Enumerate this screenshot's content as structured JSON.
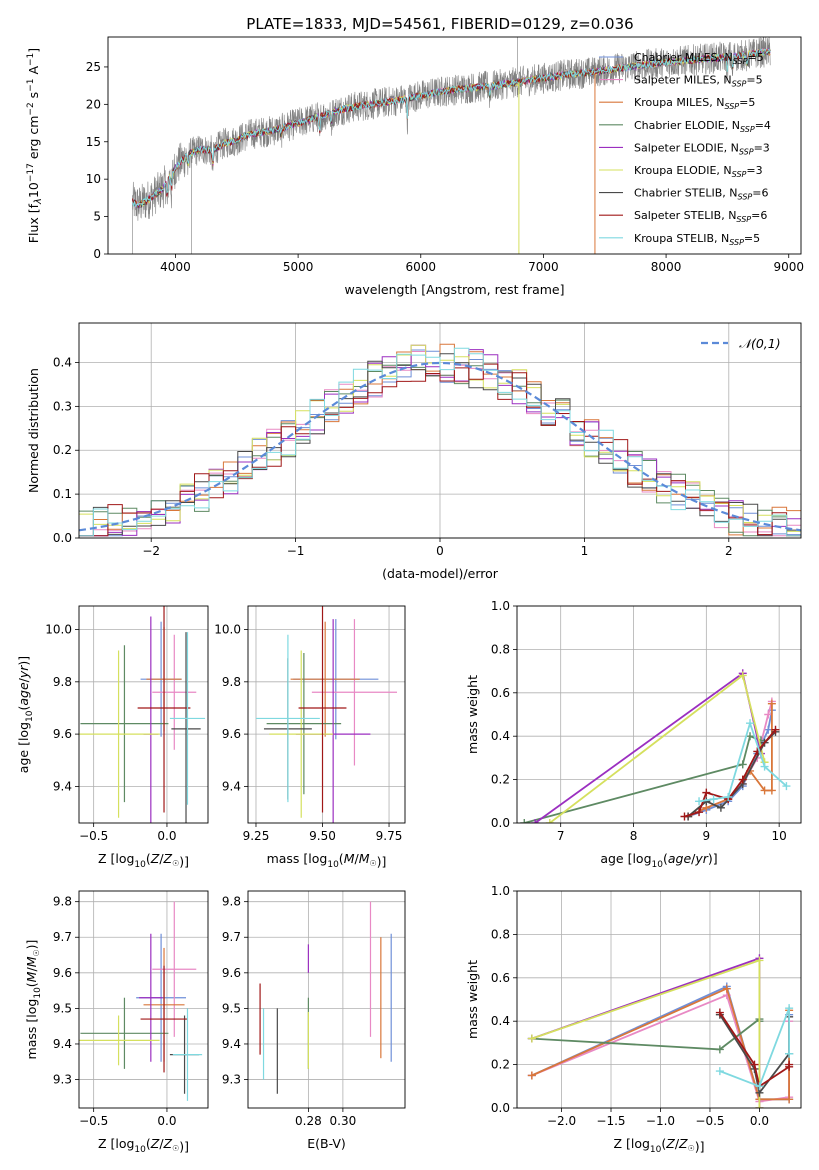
{
  "title": "PLATE=1833, MJD=54561, FIBERID=0129, z=0.036",
  "models": [
    {
      "label": "Chabrier MILES, N_SSP=5",
      "base": "Chabrier MILES, N",
      "sub": "SSP",
      "suffix": "=5",
      "color": "#6f8fd8"
    },
    {
      "label": "Salpeter MILES, N_SSP=5",
      "base": "Salpeter MILES, N",
      "sub": "SSP",
      "suffix": "=5",
      "color": "#e889c4"
    },
    {
      "label": "Kroupa MILES, N_SSP=5",
      "base": "Kroupa MILES, N",
      "sub": "SSP",
      "suffix": "=5",
      "color": "#d9773a"
    },
    {
      "label": "Chabrier ELODIE, N_SSP=4",
      "base": "Chabrier ELODIE, N",
      "sub": "SSP",
      "suffix": "=4",
      "color": "#5e8a63"
    },
    {
      "label": "Salpeter ELODIE, N_SSP=3",
      "base": "Salpeter ELODIE, N",
      "sub": "SSP",
      "suffix": "=3",
      "color": "#9b2fc0"
    },
    {
      "label": "Kroupa ELODIE, N_SSP=3",
      "base": "Kroupa ELODIE, N",
      "sub": "SSP",
      "suffix": "=3",
      "color": "#d5e05e"
    },
    {
      "label": "Chabrier STELIB, N_SSP=6",
      "base": "Chabrier STELIB, N",
      "sub": "SSP",
      "suffix": "=6",
      "color": "#4a4a4a"
    },
    {
      "label": "Salpeter STELIB, N_SSP=6",
      "base": "Salpeter STELIB, N",
      "sub": "SSP",
      "suffix": "=6",
      "color": "#a01818"
    },
    {
      "label": "Kroupa STELIB, N_SSP=5",
      "base": "Kroupa STELIB, N",
      "sub": "SSP",
      "suffix": "=5",
      "color": "#7fd9e0"
    }
  ],
  "chart_data": [
    {
      "id": "spectrum",
      "type": "line",
      "title": "PLATE=1833, MJD=54561, FIBERID=0129, z=0.036",
      "xlabel": "wavelength [Angstrom, rest frame]",
      "ylabel": "Flux [f_λ 10^-17 erg cm^-2 s^-1 A^-1]",
      "xlim": [
        3450,
        9100
      ],
      "ylim": [
        0,
        29
      ],
      "xticks": [
        4000,
        5000,
        6000,
        7000,
        8000,
        9000
      ],
      "yticks": [
        0,
        5,
        10,
        15,
        20,
        25
      ],
      "data_color": "#808080",
      "continuum": {
        "x": [
          3650,
          3700,
          3800,
          3900,
          4000,
          4100,
          4200,
          4300,
          4400,
          4500,
          4600,
          4800,
          5000,
          5200,
          5400,
          5600,
          5800,
          6000,
          6200,
          6400,
          6600,
          6800,
          7000,
          7200,
          7400,
          7600,
          7800,
          8000,
          8200,
          8400,
          8600,
          8800
        ],
        "y": [
          7.0,
          6.5,
          7.5,
          8.8,
          11.5,
          13.3,
          14.0,
          13.8,
          14.8,
          15.2,
          16.0,
          16.5,
          17.5,
          18.5,
          19.5,
          20.0,
          20.5,
          21.2,
          21.8,
          22.2,
          22.5,
          23.0,
          23.5,
          24.0,
          24.3,
          24.8,
          25.2,
          25.6,
          25.9,
          26.2,
          26.5,
          27.0
        ]
      },
      "absorption_lines": [
        [
          3934,
          3.0
        ],
        [
          3968,
          2.5
        ],
        [
          4102,
          2.0
        ],
        [
          4304,
          2.5
        ],
        [
          4861,
          1.5
        ],
        [
          5175,
          3.0
        ],
        [
          5270,
          2.0
        ],
        [
          5890,
          3.0
        ],
        [
          6563,
          1.5
        ],
        [
          8498,
          2.0
        ],
        [
          8542,
          2.5
        ],
        [
          8662,
          2.0
        ]
      ],
      "grid": false,
      "legend": "upper right"
    },
    {
      "id": "residuals",
      "type": "histogram",
      "xlabel": "(data-model)/error",
      "ylabel": "Normed distribution",
      "xlim": [
        -2.5,
        2.5
      ],
      "ylim": [
        0,
        0.49
      ],
      "xticks": [
        -2,
        -1,
        0,
        1,
        2
      ],
      "yticks": [
        0.0,
        0.1,
        0.2,
        0.3,
        0.4
      ],
      "bin_width": 0.1,
      "normal_curve": {
        "label": "𝒩(0,1)",
        "color": "#5b8ad8",
        "mean": 0,
        "std": 1
      },
      "grid": true,
      "legend": "upper right"
    },
    {
      "id": "age_vs_Z",
      "type": "errorbar",
      "xlabel": "Z [log10(Z/Z☉)]",
      "ylabel": "age [log10(age/yr)]",
      "xlim": [
        -0.6,
        0.28
      ],
      "ylim": [
        9.26,
        10.09
      ],
      "xticks": [
        -0.5,
        0.0
      ],
      "xticklabels": [
        "−0.5",
        "0.0"
      ],
      "yticks": [
        9.4,
        9.6,
        9.8,
        10.0
      ],
      "points": [
        {
          "series": 0,
          "x": -0.04,
          "y": 9.81,
          "xerr": 0.14,
          "yerr": 0.22
        },
        {
          "series": 1,
          "x": 0.05,
          "y": 9.76,
          "xerr": 0.15,
          "yerr": 0.22
        },
        {
          "series": 2,
          "x": -0.02,
          "y": 9.81,
          "xerr": 0.12,
          "yerr": 0.2
        },
        {
          "series": 3,
          "x": -0.29,
          "y": 9.64,
          "xerr": 0.3,
          "yerr": 0.3
        },
        {
          "series": 4,
          "x": -0.11,
          "y": 9.6,
          "xerr": 0.05,
          "yerr": 0.45
        },
        {
          "series": 5,
          "x": -0.33,
          "y": 9.6,
          "xerr": 0.28,
          "yerr": 0.32
        },
        {
          "series": 6,
          "x": 0.13,
          "y": 9.62,
          "xerr": 0.1,
          "yerr": 0.37
        },
        {
          "series": 7,
          "x": -0.02,
          "y": 9.7,
          "xerr": 0.18,
          "yerr": 0.4
        },
        {
          "series": 8,
          "x": 0.14,
          "y": 9.66,
          "xerr": 0.12,
          "yerr": 0.33
        }
      ],
      "grid": true
    },
    {
      "id": "age_vs_mass",
      "type": "errorbar",
      "xlabel": "mass [log10(M/M☉)]",
      "ylabel": "",
      "xlim": [
        9.22,
        9.81
      ],
      "ylim": [
        9.26,
        10.09
      ],
      "xticks": [
        9.25,
        9.5,
        9.75
      ],
      "yticks": [
        9.4,
        9.6,
        9.8,
        10.0
      ],
      "points": [
        {
          "series": 0,
          "x": 9.55,
          "y": 9.81,
          "xerr": 0.16,
          "yerr": 0.23
        },
        {
          "series": 1,
          "x": 9.62,
          "y": 9.76,
          "xerr": 0.16,
          "yerr": 0.28
        },
        {
          "series": 2,
          "x": 9.51,
          "y": 9.81,
          "xerr": 0.13,
          "yerr": 0.22
        },
        {
          "series": 3,
          "x": 9.43,
          "y": 9.64,
          "xerr": 0.14,
          "yerr": 0.27
        },
        {
          "series": 4,
          "x": 9.54,
          "y": 9.6,
          "xerr": 0.14,
          "yerr": 0.44
        },
        {
          "series": 5,
          "x": 9.42,
          "y": 9.6,
          "xerr": 0.12,
          "yerr": 0.32
        },
        {
          "series": 6,
          "x": 9.37,
          "y": 9.62,
          "xerr": 0.09,
          "yerr": 0.27
        },
        {
          "series": 7,
          "x": 9.5,
          "y": 9.7,
          "xerr": 0.09,
          "yerr": 0.4
        },
        {
          "series": 8,
          "x": 9.37,
          "y": 9.66,
          "xerr": 0.12,
          "yerr": 0.32
        }
      ],
      "grid": true
    },
    {
      "id": "massweight_vs_age",
      "type": "line",
      "xlabel": "age [log10(age/yr)]",
      "ylabel": "mass weight",
      "xlim": [
        6.4,
        10.3
      ],
      "ylim": [
        0,
        1
      ],
      "xticks": [
        7,
        8,
        9,
        10
      ],
      "yticks": [
        0.0,
        0.2,
        0.4,
        0.6,
        0.8,
        1.0
      ],
      "series": [
        {
          "series": 0,
          "x": [
            8.75,
            9.0,
            9.3,
            9.5,
            9.7,
            9.85,
            9.9
          ],
          "y": [
            0.03,
            0.06,
            0.1,
            0.17,
            0.32,
            0.43,
            0.52
          ]
        },
        {
          "series": 1,
          "x": [
            8.75,
            9.0,
            9.3,
            9.5,
            9.7,
            9.85,
            9.9
          ],
          "y": [
            0.03,
            0.07,
            0.11,
            0.18,
            0.3,
            0.5,
            0.56
          ]
        },
        {
          "series": 2,
          "x": [
            8.75,
            9.0,
            9.3,
            9.5,
            9.6,
            9.8,
            9.9,
            9.9
          ],
          "y": [
            0.03,
            0.07,
            0.11,
            0.2,
            0.24,
            0.15,
            0.15,
            0.55
          ]
        },
        {
          "series": 3,
          "x": [
            6.5,
            9.5,
            9.6,
            9.75
          ],
          "y": [
            0.0,
            0.27,
            0.4,
            0.38
          ]
        },
        {
          "series": 4,
          "x": [
            6.65,
            9.5,
            9.75
          ],
          "y": [
            0.0,
            0.69,
            0.32
          ]
        },
        {
          "series": 5,
          "x": [
            6.85,
            9.5,
            9.8
          ],
          "y": [
            0.0,
            0.68,
            0.28
          ]
        },
        {
          "series": 6,
          "x": [
            8.75,
            9.0,
            9.2,
            9.5,
            9.8,
            9.95
          ],
          "y": [
            0.03,
            0.1,
            0.07,
            0.18,
            0.37,
            0.42
          ]
        },
        {
          "series": 7,
          "x": [
            8.7,
            8.9,
            9.0,
            9.3,
            9.5,
            9.7,
            9.95
          ],
          "y": [
            0.03,
            0.05,
            0.14,
            0.11,
            0.2,
            0.33,
            0.43
          ]
        },
        {
          "series": 8,
          "x": [
            8.9,
            9.1,
            9.3,
            9.6,
            9.8,
            10.1
          ],
          "y": [
            0.1,
            0.11,
            0.12,
            0.46,
            0.26,
            0.17
          ]
        }
      ],
      "grid": true
    },
    {
      "id": "mass_vs_Z",
      "type": "errorbar",
      "xlabel": "Z [log10(Z/Z☉)]",
      "ylabel": "mass [log10(M/M☉)]",
      "xlim": [
        -0.6,
        0.28
      ],
      "ylim": [
        9.22,
        9.83
      ],
      "xticks": [
        -0.5,
        0.0
      ],
      "xticklabels": [
        "−0.5",
        "0.0"
      ],
      "yticks": [
        9.3,
        9.4,
        9.5,
        9.6,
        9.7,
        9.8
      ],
      "points": [
        {
          "series": 0,
          "x": -0.04,
          "y": 9.53,
          "xerr": 0.17,
          "yerr": 0.18
        },
        {
          "series": 1,
          "x": 0.05,
          "y": 9.61,
          "xerr": 0.15,
          "yerr": 0.19
        },
        {
          "series": 2,
          "x": -0.02,
          "y": 9.51,
          "xerr": 0.14,
          "yerr": 0.16
        },
        {
          "series": 3,
          "x": -0.29,
          "y": 9.43,
          "xerr": 0.3,
          "yerr": 0.1
        },
        {
          "series": 4,
          "x": -0.11,
          "y": 9.53,
          "xerr": 0.08,
          "yerr": 0.18
        },
        {
          "series": 5,
          "x": -0.33,
          "y": 9.41,
          "xerr": 0.28,
          "yerr": 0.07
        },
        {
          "series": 6,
          "x": 0.12,
          "y": 9.37,
          "xerr": 0.1,
          "yerr": 0.11
        },
        {
          "series": 7,
          "x": -0.02,
          "y": 9.47,
          "xerr": 0.16,
          "yerr": 0.15
        },
        {
          "series": 8,
          "x": 0.14,
          "y": 9.37,
          "xerr": 0.1,
          "yerr": 0.13
        }
      ],
      "grid": true
    },
    {
      "id": "mass_vs_ebv",
      "type": "errorbar",
      "xlabel": "E(B-V)",
      "ylabel": "",
      "xlim": [
        0.245,
        0.336
      ],
      "ylim": [
        9.22,
        9.83
      ],
      "xticks": [
        0.28,
        0.3
      ],
      "xticklabels": [
        "0.28",
        "0.30"
      ],
      "yticks": [
        9.3,
        9.4,
        9.5,
        9.6,
        9.7,
        9.8
      ],
      "points": [
        {
          "series": 0,
          "x": 0.328,
          "y": 9.53,
          "xerr": 0,
          "yerr": 0.18
        },
        {
          "series": 1,
          "x": 0.316,
          "y": 9.61,
          "xerr": 0,
          "yerr": 0.19
        },
        {
          "series": 2,
          "x": 0.322,
          "y": 9.53,
          "xerr": 0,
          "yerr": 0.17
        },
        {
          "series": 3,
          "x": 0.28,
          "y": 9.43,
          "xerr": 0,
          "yerr": 0.1
        },
        {
          "series": 4,
          "x": 0.28,
          "y": 9.64,
          "xerr": 0,
          "yerr": 0.04
        },
        {
          "series": 5,
          "x": 0.28,
          "y": 9.41,
          "xerr": 0,
          "yerr": 0.08
        },
        {
          "series": 6,
          "x": 0.262,
          "y": 9.38,
          "xerr": 0,
          "yerr": 0.12
        },
        {
          "series": 7,
          "x": 0.252,
          "y": 9.47,
          "xerr": 0,
          "yerr": 0.1
        },
        {
          "series": 8,
          "x": 0.254,
          "y": 9.4,
          "xerr": 0,
          "yerr": 0.1
        }
      ],
      "grid": true
    },
    {
      "id": "massweight_vs_Z",
      "type": "line",
      "xlabel": "Z [log10(Z/Z☉)]",
      "ylabel": "mass weight",
      "xlim": [
        -2.45,
        0.42
      ],
      "ylim": [
        0,
        1
      ],
      "xticks": [
        -2.0,
        -1.5,
        -1.0,
        -0.5,
        0.0
      ],
      "xticklabels": [
        "−2.0",
        "−1.5",
        "−1.0",
        "−0.5",
        "0.0"
      ],
      "yticks": [
        0.0,
        0.2,
        0.4,
        0.6,
        0.8,
        1.0
      ],
      "series": [
        {
          "series": 0,
          "x": [
            -2.3,
            -0.33,
            0.0,
            0.3,
            0.3
          ],
          "y": [
            0.15,
            0.56,
            0.04,
            0.04,
            0.43
          ]
        },
        {
          "series": 1,
          "x": [
            -2.3,
            -0.33,
            0.0,
            0.3,
            0.3
          ],
          "y": [
            0.15,
            0.52,
            0.03,
            0.05,
            0.4
          ]
        },
        {
          "series": 2,
          "x": [
            -2.3,
            -0.33,
            0.0,
            0.3,
            0.3
          ],
          "y": [
            0.15,
            0.55,
            0.04,
            0.04,
            0.45
          ]
        },
        {
          "series": 3,
          "x": [
            -2.3,
            -0.4,
            0.0,
            0.0
          ],
          "y": [
            0.32,
            0.27,
            0.41,
            0.4
          ]
        },
        {
          "series": 4,
          "x": [
            -2.3,
            0.0,
            0.0
          ],
          "y": [
            0.32,
            0.69,
            0.0
          ]
        },
        {
          "series": 5,
          "x": [
            -2.3,
            0.0,
            0.0
          ],
          "y": [
            0.32,
            0.68,
            0.0
          ]
        },
        {
          "series": 6,
          "x": [
            -0.4,
            -0.05,
            0.0,
            0.3,
            0.3
          ],
          "y": [
            0.43,
            0.18,
            0.07,
            0.25,
            0.42
          ]
        },
        {
          "series": 7,
          "x": [
            -0.4,
            -0.05,
            0.0,
            0.3,
            0.3
          ],
          "y": [
            0.44,
            0.2,
            0.1,
            0.19,
            0.2
          ]
        },
        {
          "series": 8,
          "x": [
            -0.4,
            0.0,
            0.3,
            0.3
          ],
          "y": [
            0.17,
            0.1,
            0.46,
            0.25
          ]
        }
      ],
      "grid": true
    }
  ]
}
